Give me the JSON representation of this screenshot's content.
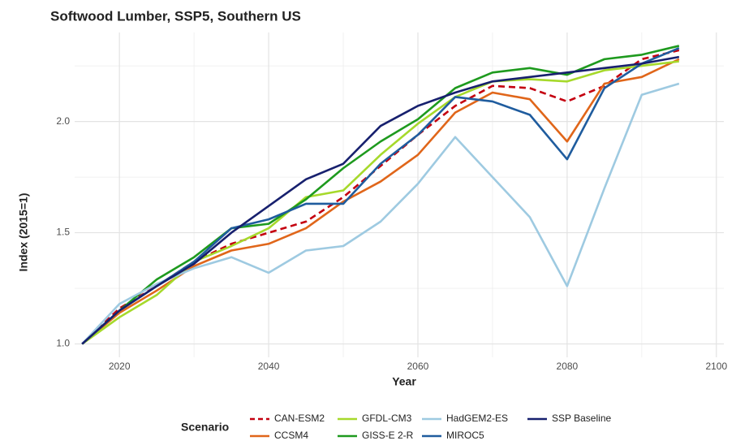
{
  "chart_data": {
    "type": "line",
    "title": "Softwood Lumber, SSP5, Southern US",
    "x_label": "Year",
    "y_label": "Index (2015=1)",
    "legend_title": "Scenario",
    "legend_position": "bottom",
    "grid": true,
    "x": [
      2015,
      2020,
      2025,
      2030,
      2035,
      2040,
      2045,
      2050,
      2055,
      2060,
      2065,
      2070,
      2075,
      2080,
      2085,
      2090,
      2095
    ],
    "xlim": [
      2014,
      2101
    ],
    "xticks": [
      2020,
      2040,
      2060,
      2080,
      2100
    ],
    "minor_xticks": [
      2030,
      2050,
      2070,
      2090
    ],
    "ylim": [
      0.94,
      2.4
    ],
    "yticks": [
      {
        "value": 1,
        "label": "1.0"
      },
      1.5,
      {
        "value": 2,
        "label": "2.0"
      }
    ],
    "minor_yticks": [
      1.25,
      1.75,
      2.25
    ],
    "series": [
      {
        "name": "CAN-ESM2",
        "color": "#c4000f",
        "linestyle": "dashed",
        "values": [
          1.0,
          1.16,
          1.26,
          1.37,
          1.45,
          1.5,
          1.55,
          1.66,
          1.8,
          1.94,
          2.07,
          2.16,
          2.15,
          2.09,
          2.16,
          2.28,
          2.32
        ]
      },
      {
        "name": "CCSM4",
        "color": "#e0661a",
        "linestyle": "solid",
        "values": [
          1.0,
          1.14,
          1.24,
          1.35,
          1.42,
          1.45,
          1.52,
          1.64,
          1.73,
          1.85,
          2.04,
          2.13,
          2.1,
          1.91,
          2.17,
          2.2,
          2.28
        ]
      },
      {
        "name": "GFDL-CM3",
        "color": "#a6d92b",
        "linestyle": "solid",
        "values": [
          1.0,
          1.12,
          1.22,
          1.37,
          1.44,
          1.52,
          1.66,
          1.69,
          1.85,
          1.99,
          2.11,
          2.18,
          2.19,
          2.18,
          2.23,
          2.25,
          2.27
        ]
      },
      {
        "name": "GISS-E 2-R",
        "color": "#1e9a1e",
        "linestyle": "solid",
        "values": [
          1.0,
          1.15,
          1.29,
          1.39,
          1.52,
          1.54,
          1.65,
          1.79,
          1.91,
          2.01,
          2.15,
          2.22,
          2.24,
          2.21,
          2.28,
          2.3,
          2.34
        ]
      },
      {
        "name": "HadGEM2-ES",
        "color": "#9ecae1",
        "linestyle": "solid",
        "values": [
          1.0,
          1.18,
          1.27,
          1.34,
          1.39,
          1.32,
          1.42,
          1.44,
          1.55,
          1.72,
          1.93,
          1.75,
          1.57,
          1.26,
          1.7,
          2.12,
          2.17
        ]
      },
      {
        "name": "MIROC5",
        "color": "#1f5c9e",
        "linestyle": "solid",
        "values": [
          1.0,
          1.15,
          1.26,
          1.37,
          1.52,
          1.56,
          1.63,
          1.63,
          1.81,
          1.94,
          2.11,
          2.09,
          2.03,
          1.83,
          2.15,
          2.26,
          2.33
        ]
      },
      {
        "name": "SSP Baseline",
        "color": "#17206e",
        "linestyle": "solid",
        "values": [
          1.0,
          1.15,
          1.26,
          1.36,
          1.5,
          1.62,
          1.74,
          1.81,
          1.98,
          2.07,
          2.13,
          2.18,
          2.2,
          2.22,
          2.24,
          2.26,
          2.29
        ]
      }
    ]
  }
}
